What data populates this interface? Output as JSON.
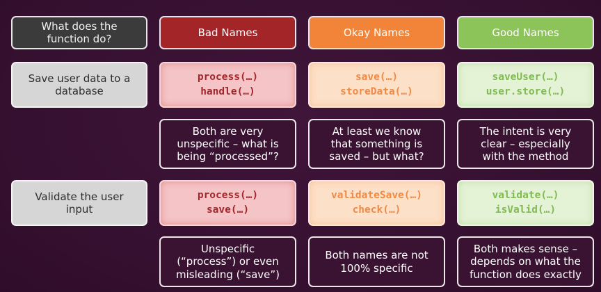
{
  "headers": {
    "question": "What does the\nfunction do?",
    "bad": "Bad Names",
    "okay": "Okay Names",
    "good": "Good Names"
  },
  "rows": [
    {
      "task": "Save user data to a\ndatabase",
      "bad": "process(…)\nhandle(…)",
      "okay": "save(…)\nstoreData(…)",
      "good": "saveUser(…)\nuser.store(…)",
      "bad_note": "Both are very\nunspecific – what is\nbeing “processed”?",
      "okay_note": "At least we know\nthat something is\nsaved – but what?",
      "good_note": "The intent is very\nclear – especially\nwith the method"
    },
    {
      "task": "Validate the user\ninput",
      "bad": "process(…)\nsave(…)",
      "okay": "validateSave(…)\ncheck(…)",
      "good": "validate(…)\nisValid(…)",
      "bad_note": "Unspecific\n(“process”) or even\nmisleading (“save”)",
      "okay_note": "Both names are not\n100% specific",
      "good_note": "Both makes sense –\ndepends on what the\nfunction does exactly"
    }
  ],
  "colors": {
    "background": "#3a1232",
    "bad": "#a32528",
    "okay": "#f28439",
    "good": "#8cc45a",
    "neutral": "#3b3b3b"
  }
}
